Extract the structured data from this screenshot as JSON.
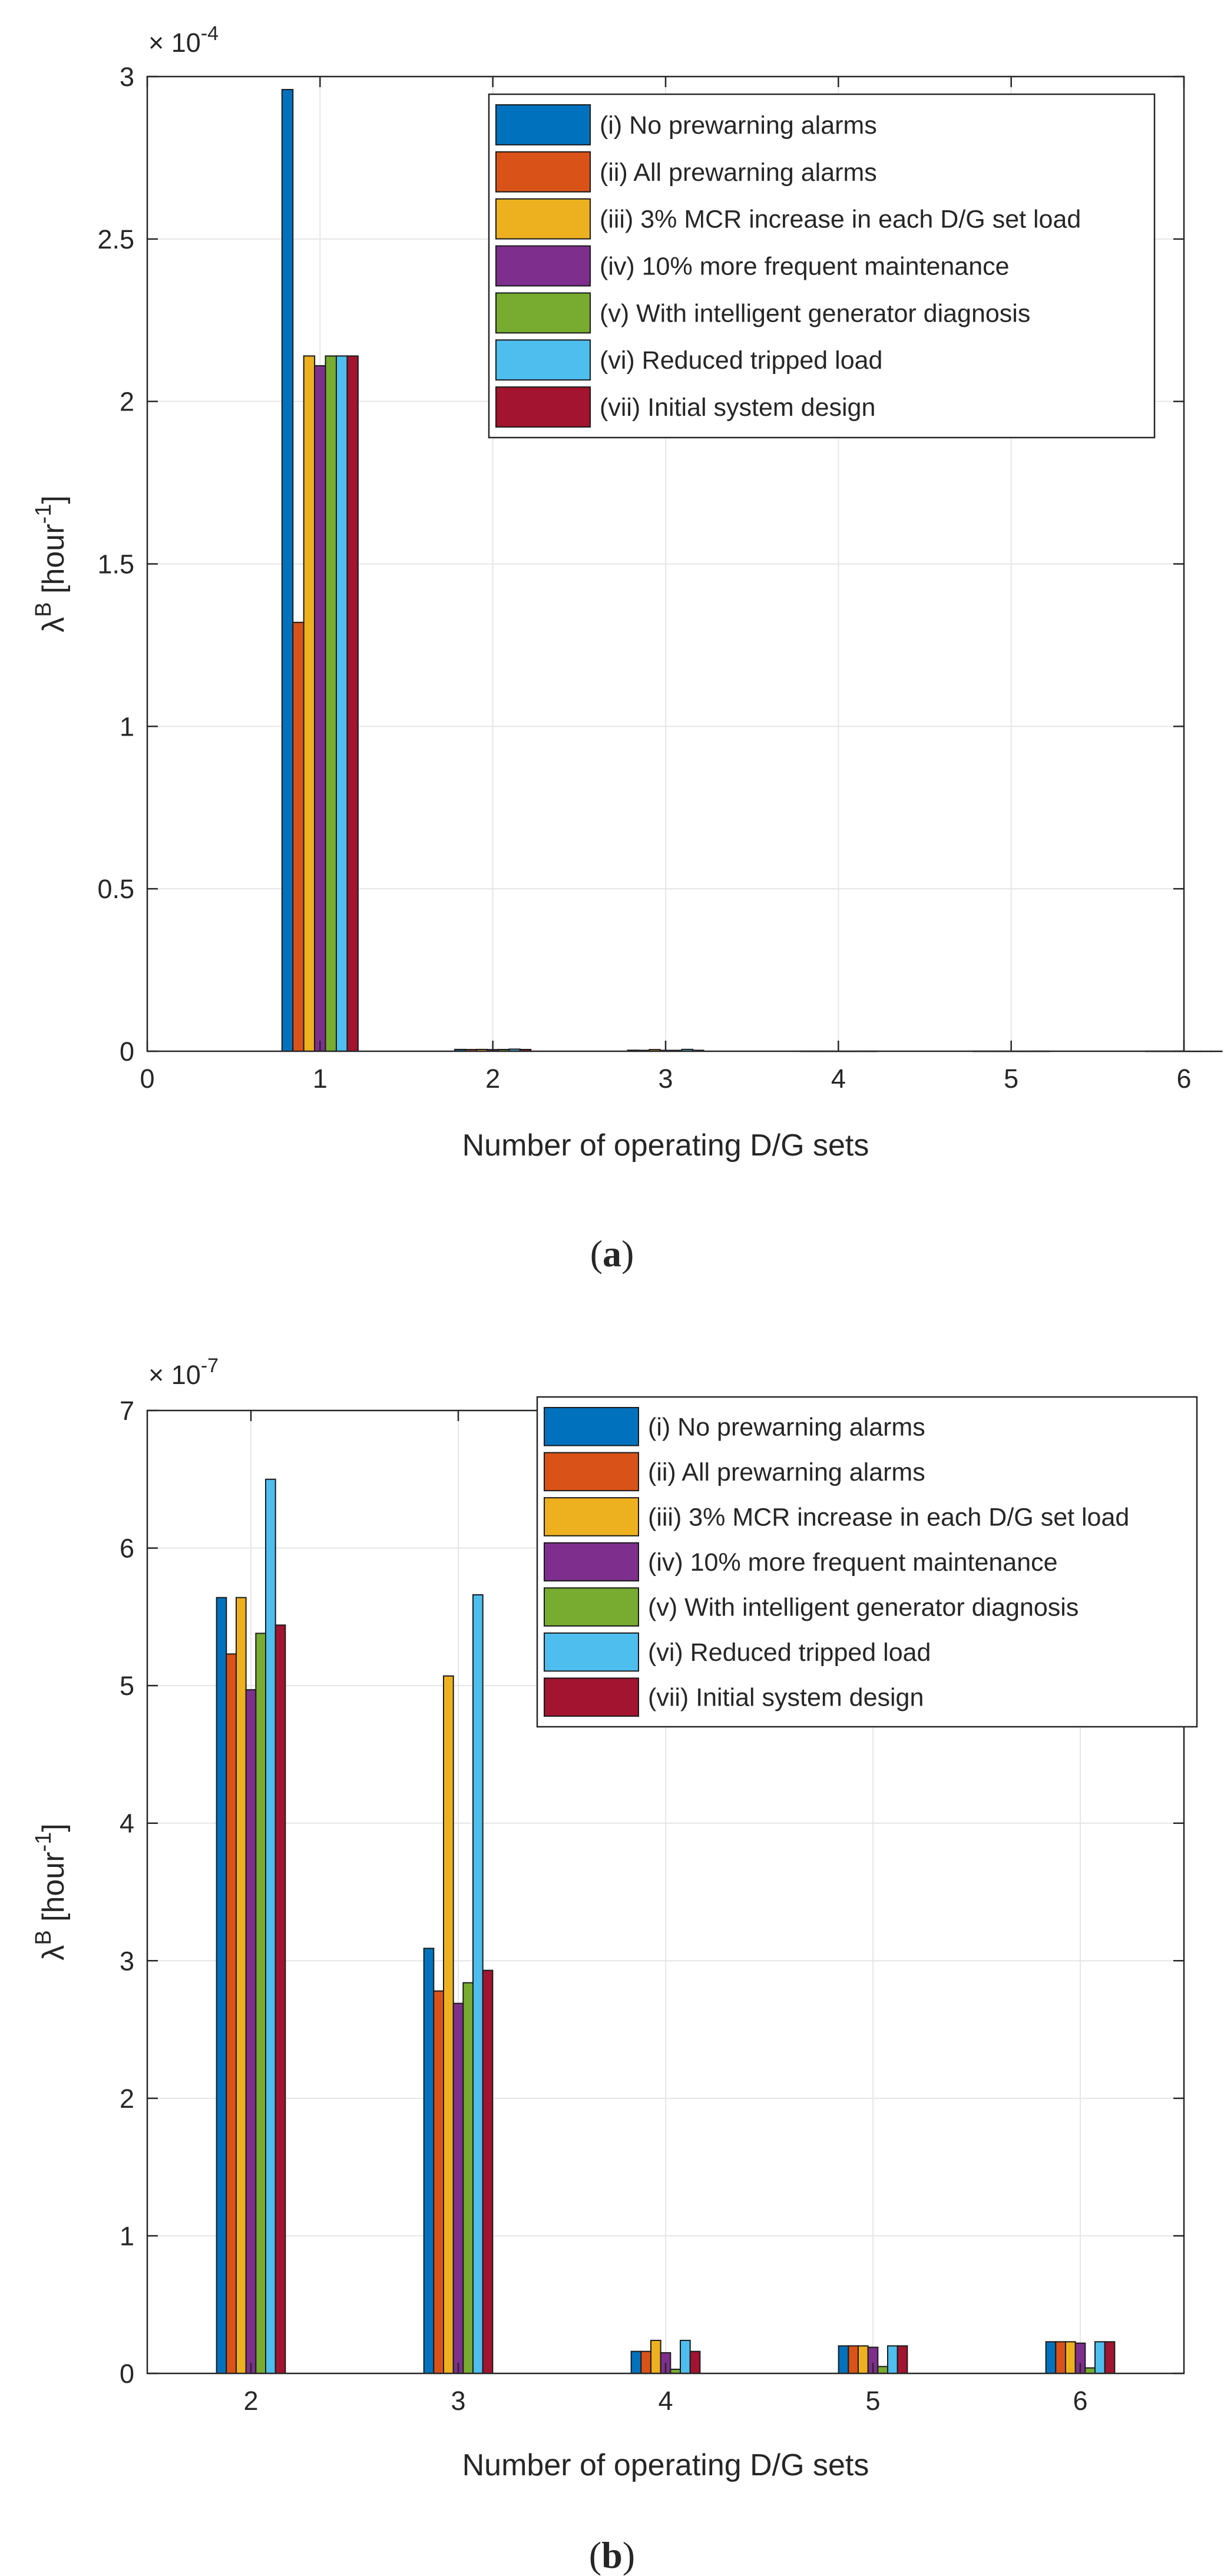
{
  "chart_data": [
    {
      "type": "bar",
      "panel": "a",
      "caption_open": "(",
      "caption_letter": "a",
      "caption_close": ")",
      "xlabel": "Number of operating D/G sets",
      "ylabel_base": "λ",
      "ylabel_sup": "B",
      "ylabel_unit": "[hour",
      "ylabel_unit_exp": "-1",
      "ylabel_close": "]",
      "exponent_base": "× 10",
      "exponent_power": "-4",
      "xlim": [
        0,
        6
      ],
      "ylim": [
        0,
        3
      ],
      "xticks": [
        "0",
        "1",
        "2",
        "3",
        "4",
        "5",
        "6"
      ],
      "yticks": [
        "0",
        "0.5",
        "1",
        "1.5",
        "2",
        "2.5",
        "3"
      ],
      "categories": [
        "1",
        "2",
        "3",
        "4",
        "5",
        "6"
      ],
      "series": [
        {
          "name": "(i) No prewarning alarms",
          "color": "#0072BD",
          "values": [
            2.96,
            0.0056,
            0.0031,
            0.0002,
            0.0002,
            0.0002
          ]
        },
        {
          "name": "(ii) All prewarning alarms",
          "color": "#D95319",
          "values": [
            1.32,
            0.0052,
            0.0028,
            0.0002,
            0.0002,
            0.0002
          ]
        },
        {
          "name": "(iii) 3% MCR increase in each D/G set load",
          "color": "#EDB120",
          "values": [
            2.14,
            0.0056,
            0.0051,
            0.0002,
            0.0002,
            0.0002
          ]
        },
        {
          "name": "(iv) 10% more frequent maintenance",
          "color": "#7E2F8E",
          "values": [
            2.11,
            0.005,
            0.0027,
            0.0002,
            0.0002,
            0.0002
          ]
        },
        {
          "name": "(v) With intelligent generator diagnosis",
          "color": "#77AC30",
          "values": [
            2.14,
            0.0054,
            0.0028,
            0.0001,
            0.0001,
            0.0001
          ]
        },
        {
          "name": "(vi) Reduced tripped load",
          "color": "#4DBEEE",
          "values": [
            2.14,
            0.0065,
            0.0057,
            0.0002,
            0.0002,
            0.0002
          ]
        },
        {
          "name": "(vii) Initial system design",
          "color": "#A2142F",
          "values": [
            2.14,
            0.0054,
            0.0029,
            0.0002,
            0.0002,
            0.0002
          ]
        }
      ]
    },
    {
      "type": "bar",
      "panel": "b",
      "caption_open": "(",
      "caption_letter": "b",
      "caption_close": ")",
      "xlabel": "Number of operating D/G sets",
      "ylabel_base": "λ",
      "ylabel_sup": "B",
      "ylabel_unit": "[hour",
      "ylabel_unit_exp": "-1",
      "ylabel_close": "]",
      "exponent_base": "× 10",
      "exponent_power": "-7",
      "xlim": [
        1.5,
        6.5
      ],
      "ylim": [
        0,
        7
      ],
      "xticks": [
        "2",
        "3",
        "4",
        "5",
        "6"
      ],
      "yticks": [
        "0",
        "1",
        "2",
        "3",
        "4",
        "5",
        "6",
        "7"
      ],
      "categories": [
        "2",
        "3",
        "4",
        "5",
        "6"
      ],
      "series": [
        {
          "name": "(i) No prewarning alarms",
          "color": "#0072BD",
          "values": [
            5.64,
            3.09,
            0.16,
            0.2,
            0.23
          ]
        },
        {
          "name": "(ii) All prewarning alarms",
          "color": "#D95319",
          "values": [
            5.23,
            2.78,
            0.16,
            0.2,
            0.23
          ]
        },
        {
          "name": "(iii) 3% MCR increase in each D/G set load",
          "color": "#EDB120",
          "values": [
            5.64,
            5.07,
            0.24,
            0.2,
            0.23
          ]
        },
        {
          "name": "(iv) 10% more frequent maintenance",
          "color": "#7E2F8E",
          "values": [
            4.97,
            2.69,
            0.15,
            0.19,
            0.22
          ]
        },
        {
          "name": "(v) With intelligent generator diagnosis",
          "color": "#77AC30",
          "values": [
            5.38,
            2.84,
            0.03,
            0.05,
            0.04
          ]
        },
        {
          "name": "(vi) Reduced tripped load",
          "color": "#4DBEEE",
          "values": [
            6.5,
            5.66,
            0.24,
            0.2,
            0.23
          ]
        },
        {
          "name": "(vii) Initial system design",
          "color": "#A2142F",
          "values": [
            5.44,
            2.93,
            0.16,
            0.2,
            0.23
          ]
        }
      ]
    }
  ]
}
